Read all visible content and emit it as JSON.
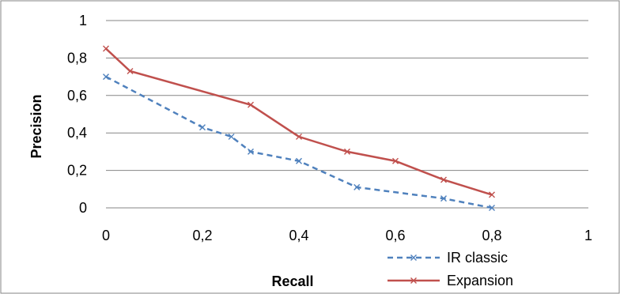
{
  "chart_data": {
    "type": "line",
    "title": "",
    "xlabel": "Recall",
    "ylabel": "Precision",
    "xlim": [
      0,
      1
    ],
    "ylim": [
      0,
      1
    ],
    "x_ticks": [
      "0",
      "0,2",
      "0,4",
      "0,6",
      "0,8",
      "1"
    ],
    "y_ticks": [
      "0",
      "0,2",
      "0,4",
      "0,6",
      "0,8",
      "1"
    ],
    "grid": "horizontal",
    "legend_position": "bottom-right",
    "series": [
      {
        "name": "IR classic",
        "color": "#4f81bd",
        "style": "dashed",
        "marker": "x",
        "x": [
          0,
          0.2,
          0.26,
          0.3,
          0.4,
          0.52,
          0.7,
          0.8
        ],
        "y": [
          0.7,
          0.43,
          0.38,
          0.3,
          0.25,
          0.11,
          0.05,
          0.0
        ]
      },
      {
        "name": "Expansion",
        "color": "#c0504d",
        "style": "solid",
        "marker": "x",
        "x": [
          0,
          0.05,
          0.3,
          0.4,
          0.5,
          0.6,
          0.7,
          0.8
        ],
        "y": [
          0.85,
          0.73,
          0.55,
          0.38,
          0.3,
          0.25,
          0.15,
          0.07
        ]
      }
    ]
  }
}
